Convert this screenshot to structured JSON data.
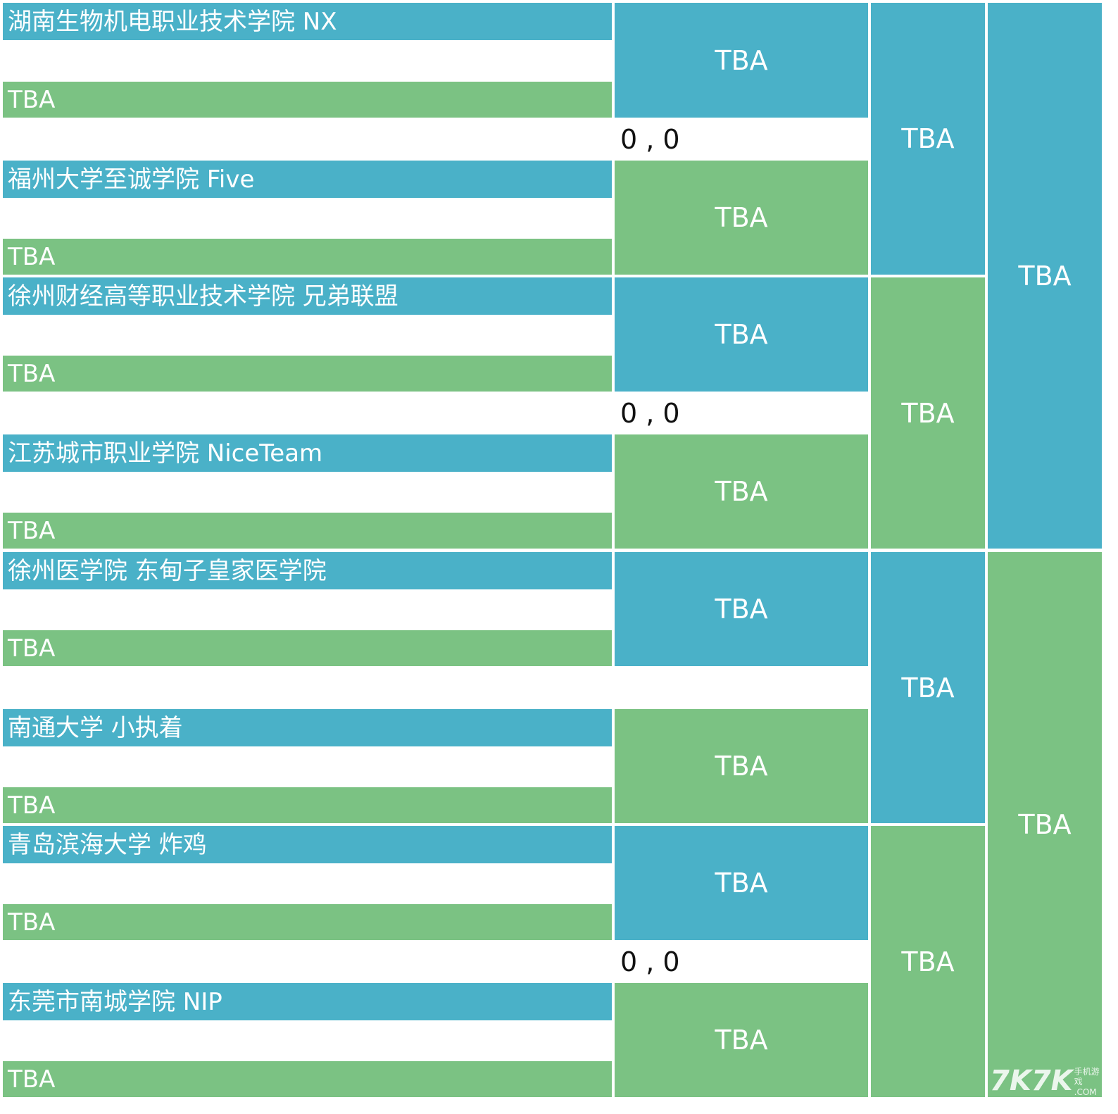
{
  "round1": [
    {
      "team": "湖南生物机电职业技术学院 NX",
      "opponent": "TBA"
    },
    {
      "team": "福州大学至诚学院 Five",
      "opponent": "TBA"
    },
    {
      "team": "徐州财经高等职业技术学院 兄弟联盟",
      "opponent": "TBA"
    },
    {
      "team": "江苏城市职业学院  NiceTeam",
      "opponent": "TBA"
    },
    {
      "team": "徐州医学院 东甸子皇家医学院",
      "opponent": "TBA"
    },
    {
      "team": "南通大学 小执着",
      "opponent": "TBA"
    },
    {
      "team": "青岛滨海大学 炸鸡",
      "opponent": "TBA"
    },
    {
      "team": "东莞市南城学院 NIP",
      "opponent": "TBA"
    }
  ],
  "round2": [
    "TBA",
    "TBA",
    "TBA",
    "TBA",
    "TBA",
    "TBA",
    "TBA",
    "TBA"
  ],
  "scores": [
    "0 , 0",
    "0 , 0",
    "0 , 0"
  ],
  "round3": [
    "TBA",
    "TBA",
    "TBA",
    "TBA"
  ],
  "round4": [
    "TBA",
    "TBA"
  ],
  "watermark": {
    "brand": "7K7K",
    "sub1": "手机游戏",
    "sub2": ".COM"
  },
  "colors": {
    "blue": "#4ab1c8",
    "green": "#7bc283"
  }
}
